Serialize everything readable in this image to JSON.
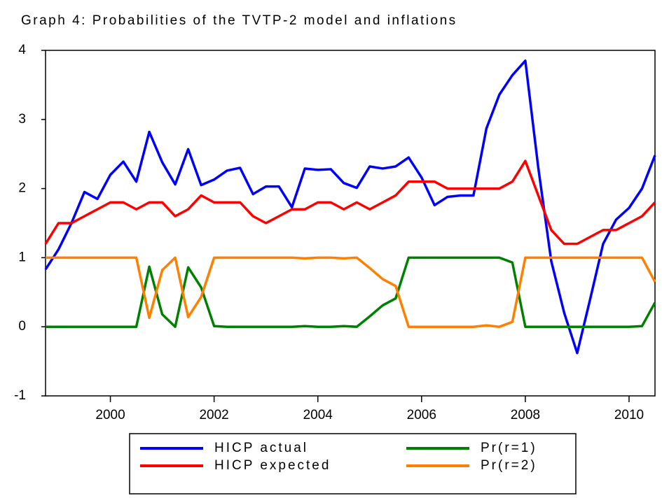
{
  "chart_data": {
    "type": "line",
    "title": "Graph 4: Probabilities of the TVTP-2 model and inflations",
    "x": [
      1998.75,
      1999,
      1999.25,
      1999.5,
      1999.75,
      2000,
      2000.25,
      2000.5,
      2000.75,
      2001,
      2001.25,
      2001.5,
      2001.75,
      2002,
      2002.25,
      2002.5,
      2002.75,
      2003,
      2003.25,
      2003.5,
      2003.75,
      2004,
      2004.25,
      2004.5,
      2004.75,
      2005,
      2005.25,
      2005.5,
      2005.75,
      2006,
      2006.25,
      2006.5,
      2006.75,
      2007,
      2007.25,
      2007.5,
      2007.75,
      2008,
      2008.25,
      2008.5,
      2008.75,
      2009,
      2009.25,
      2009.5,
      2009.75,
      2010,
      2010.25,
      2010.5
    ],
    "series": [
      {
        "name": "HICP actual",
        "color": "#0000ff",
        "values": [
          0.83,
          1.12,
          1.5,
          1.95,
          1.85,
          2.2,
          2.39,
          2.1,
          2.82,
          2.38,
          2.06,
          2.57,
          2.05,
          2.13,
          2.26,
          2.3,
          1.92,
          2.03,
          2.03,
          1.73,
          2.29,
          2.27,
          2.28,
          2.08,
          2.01,
          2.32,
          2.29,
          2.32,
          2.45,
          2.16,
          1.76,
          1.88,
          1.9,
          1.9,
          2.87,
          3.36,
          3.64,
          3.85,
          2.3,
          0.95,
          0.2,
          -0.38,
          0.4,
          1.2,
          1.55,
          1.72,
          2.0,
          2.48
        ]
      },
      {
        "name": "HICP expected",
        "color": "#ff0000",
        "values": [
          1.2,
          1.5,
          1.5,
          1.6,
          1.7,
          1.8,
          1.8,
          1.7,
          1.8,
          1.8,
          1.6,
          1.7,
          1.9,
          1.8,
          1.8,
          1.8,
          1.6,
          1.5,
          1.6,
          1.7,
          1.7,
          1.8,
          1.8,
          1.7,
          1.8,
          1.7,
          1.8,
          1.9,
          2.1,
          2.1,
          2.1,
          2.0,
          2.0,
          2.0,
          2.0,
          2.0,
          2.1,
          2.4,
          1.9,
          1.4,
          1.2,
          1.2,
          1.3,
          1.4,
          1.4,
          1.5,
          1.6,
          1.8
        ]
      },
      {
        "name": "Pr(r=1)",
        "color": "#008000",
        "values": [
          0,
          0,
          0,
          0,
          0,
          0,
          0,
          0,
          0.87,
          0.18,
          0,
          0.86,
          0.57,
          0.01,
          0,
          0,
          0,
          0,
          0,
          0,
          0.01,
          0,
          0,
          0.01,
          0,
          0.15,
          0.31,
          0.41,
          1,
          1,
          1,
          1,
          1,
          1,
          1,
          1,
          0.93,
          0,
          0,
          0,
          0,
          0,
          0,
          0,
          0,
          0,
          0.01,
          0.35
        ]
      },
      {
        "name": "Pr(r=2)",
        "color": "#ff8000",
        "values": [
          1,
          1,
          1,
          1,
          1,
          1,
          1,
          1,
          0.13,
          0.82,
          1,
          0.14,
          0.43,
          1,
          1,
          1,
          1,
          1,
          1,
          1,
          0.99,
          1,
          1,
          0.99,
          1,
          0.85,
          0.69,
          0.59,
          0,
          0,
          0,
          0,
          0,
          0,
          0.02,
          0,
          0.07,
          1,
          1,
          1,
          1,
          1,
          1,
          1,
          1,
          1,
          1,
          0.65
        ]
      }
    ],
    "xlim": [
      1998.75,
      2010.5
    ],
    "xticks": [
      2000,
      2002,
      2004,
      2006,
      2008,
      2010
    ],
    "ylim": [
      -1,
      4
    ],
    "yticks": [
      -1,
      0,
      1,
      2,
      3,
      4
    ],
    "grid": false,
    "legend": "bottom"
  }
}
